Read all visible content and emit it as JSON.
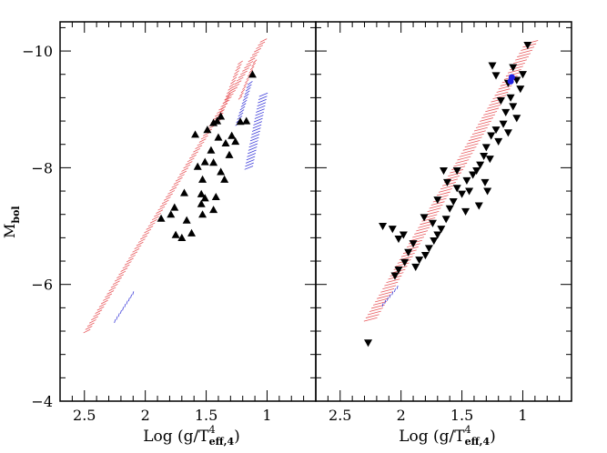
{
  "chart_data": {
    "type": "scatter",
    "panels": [
      {
        "id": "left",
        "xlabel": "Log (g/T",
        "xlabel_sup": "4",
        "xlabel_sub": "eff,4",
        "xlabel_close": ")",
        "ylabel": "M",
        "ylabel_sub": "bol",
        "xlim": [
          2.7,
          0.6
        ],
        "ylim": [
          -4,
          -10.5
        ],
        "xticks": [
          2.5,
          2,
          1.5,
          1
        ],
        "xtick_labels": [
          "2.5",
          "2",
          "1.5",
          "1"
        ],
        "yticks": [
          -10,
          -8,
          -6,
          -4
        ],
        "ytick_labels": [
          "−10",
          "−8",
          "−6",
          "−4"
        ],
        "marker": "triangle-up",
        "points": [
          [
            1.59,
            -8.57
          ],
          [
            1.49,
            -8.65
          ],
          [
            1.44,
            -8.77
          ],
          [
            1.41,
            -8.8
          ],
          [
            1.38,
            -8.88
          ],
          [
            1.29,
            -8.55
          ],
          [
            1.26,
            -8.45
          ],
          [
            1.22,
            -8.79
          ],
          [
            1.17,
            -8.8
          ],
          [
            1.12,
            -9.6
          ],
          [
            1.4,
            -8.52
          ],
          [
            1.34,
            -8.42
          ],
          [
            1.31,
            -8.22
          ],
          [
            1.46,
            -8.3
          ],
          [
            1.51,
            -8.1
          ],
          [
            1.57,
            -8.02
          ],
          [
            1.44,
            -8.09
          ],
          [
            1.38,
            -7.93
          ],
          [
            1.35,
            -7.8
          ],
          [
            1.53,
            -7.8
          ],
          [
            1.54,
            -7.55
          ],
          [
            1.42,
            -7.5
          ],
          [
            1.68,
            -7.57
          ],
          [
            1.54,
            -7.38
          ],
          [
            1.79,
            -7.2
          ],
          [
            1.76,
            -7.32
          ],
          [
            1.66,
            -7.1
          ],
          [
            1.62,
            -6.88
          ],
          [
            1.87,
            -7.13
          ],
          [
            1.75,
            -6.85
          ],
          [
            1.7,
            -6.8
          ],
          [
            1.53,
            -7.2
          ],
          [
            1.44,
            -7.28
          ],
          [
            1.51,
            -7.48
          ]
        ],
        "red_tracks": [
          {
            "x": [
              2.48,
              1.03
            ],
            "y": [
              -5.2,
              -10.18
            ],
            "halfwidth": 0.028
          },
          {
            "x": [
              1.4,
              1.22
            ],
            "y": [
              -8.8,
              -9.8
            ],
            "halfwidth": 0.02
          },
          {
            "x": [
              1.22,
              1.1
            ],
            "y": [
              -9.2,
              -9.82
            ],
            "halfwidth": 0.015
          }
        ],
        "blue_tracks": [
          {
            "x": [
              1.24,
              1.14
            ],
            "y": [
              -8.75,
              -9.45
            ],
            "halfwidth": 0.02
          },
          {
            "x": [
              1.15,
              1.03
            ],
            "y": [
              -8.0,
              -9.25
            ],
            "halfwidth": 0.035
          },
          {
            "x": [
              2.25,
              2.1
            ],
            "y": [
              -5.37,
              -5.85
            ],
            "halfwidth": 0.004
          }
        ]
      },
      {
        "id": "right",
        "xlabel": "Log (g/T",
        "xlabel_sup": "4",
        "xlabel_sub": "eff,4",
        "xlabel_close": ")",
        "xlim": [
          2.7,
          0.6
        ],
        "ylim": [
          -4,
          -10.5
        ],
        "xticks": [
          2.5,
          2,
          1.5,
          1
        ],
        "xtick_labels": [
          "2.5",
          "2",
          "1.5",
          "1"
        ],
        "marker": "triangle-down",
        "points": [
          [
            2.27,
            -5.0
          ],
          [
            1.08,
            -9.72
          ],
          [
            1.0,
            -9.6
          ],
          [
            1.05,
            -9.5
          ],
          [
            1.02,
            -9.35
          ],
          [
            0.96,
            -10.1
          ],
          [
            1.12,
            -9.45
          ],
          [
            1.18,
            -9.15
          ],
          [
            1.25,
            -9.75
          ],
          [
            1.22,
            -9.58
          ],
          [
            1.1,
            -9.2
          ],
          [
            1.08,
            -9.05
          ],
          [
            1.05,
            -8.85
          ],
          [
            1.14,
            -8.95
          ],
          [
            1.16,
            -8.75
          ],
          [
            1.12,
            -8.6
          ],
          [
            1.22,
            -8.65
          ],
          [
            1.2,
            -8.45
          ],
          [
            1.26,
            -8.55
          ],
          [
            1.3,
            -8.35
          ],
          [
            1.32,
            -8.2
          ],
          [
            1.27,
            -8.15
          ],
          [
            1.35,
            -8.05
          ],
          [
            1.38,
            -7.95
          ],
          [
            1.41,
            -7.88
          ],
          [
            1.46,
            -7.78
          ],
          [
            1.44,
            -7.6
          ],
          [
            1.5,
            -7.55
          ],
          [
            1.54,
            -7.65
          ],
          [
            1.57,
            -7.42
          ],
          [
            1.6,
            -7.3
          ],
          [
            1.63,
            -7.12
          ],
          [
            1.67,
            -6.95
          ],
          [
            1.7,
            -6.85
          ],
          [
            1.73,
            -6.75
          ],
          [
            1.77,
            -6.62
          ],
          [
            1.8,
            -6.5
          ],
          [
            1.85,
            -6.42
          ],
          [
            1.88,
            -6.3
          ],
          [
            1.9,
            -6.7
          ],
          [
            1.94,
            -6.55
          ],
          [
            1.97,
            -6.38
          ],
          [
            2.02,
            -6.25
          ],
          [
            2.05,
            -6.15
          ],
          [
            1.98,
            -6.85
          ],
          [
            2.07,
            -6.95
          ],
          [
            2.15,
            -7.0
          ],
          [
            2.02,
            -6.78
          ],
          [
            1.81,
            -7.15
          ],
          [
            1.7,
            -7.45
          ],
          [
            1.62,
            -7.75
          ],
          [
            1.54,
            -7.95
          ],
          [
            1.29,
            -7.6
          ],
          [
            1.36,
            -7.35
          ],
          [
            1.31,
            -7.75
          ],
          [
            1.65,
            -7.95
          ],
          [
            1.47,
            -7.25
          ],
          [
            1.74,
            -7.05
          ]
        ],
        "blue_points": [
          [
            1.1,
            -9.48
          ],
          [
            1.09,
            -9.55
          ]
        ],
        "red_tracks": [
          {
            "x": [
              2.25,
              0.93
            ],
            "y": [
              -5.4,
              -10.15
            ],
            "halfwidth": 0.055
          }
        ],
        "blue_tracks": [
          {
            "x": [
              2.15,
              2.03
            ],
            "y": [
              -5.65,
              -5.95
            ],
            "halfwidth": 0.004
          }
        ]
      }
    ]
  }
}
